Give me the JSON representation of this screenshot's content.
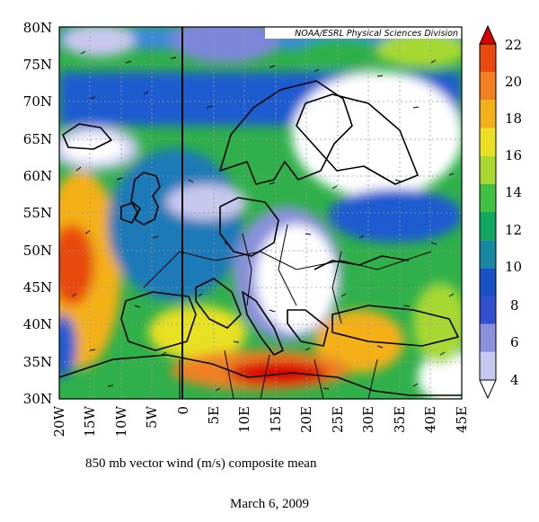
{
  "map": {
    "credit": "NOAA/ESRL Physical Sciences Division",
    "lat_labels": [
      "80N",
      "75N",
      "70N",
      "65N",
      "60N",
      "55N",
      "50N",
      "45N",
      "40N",
      "35N",
      "30N"
    ],
    "lon_labels": [
      "20W",
      "15W",
      "10W",
      "5W",
      "0",
      "5E",
      "10E",
      "15E",
      "20E",
      "25E",
      "30E",
      "35E",
      "40E",
      "45E"
    ],
    "lat_range": [
      30,
      80
    ],
    "lon_range": [
      -20,
      45
    ],
    "colorbar": {
      "ticks": [
        "22",
        "20",
        "18",
        "16",
        "14",
        "12",
        "10",
        "8",
        "6",
        "4"
      ],
      "colors": [
        "#d90000",
        "#e84a10",
        "#f08020",
        "#f4b018",
        "#e8e020",
        "#a8d830",
        "#40c040",
        "#10a860",
        "#1888a0",
        "#1850c8",
        "#3050d0",
        "#8a90dc",
        "#c8c8ee",
        "#ffffff"
      ]
    },
    "caption": "850 mb vector wind (m/s) composite mean",
    "date": "March 6, 2009"
  }
}
